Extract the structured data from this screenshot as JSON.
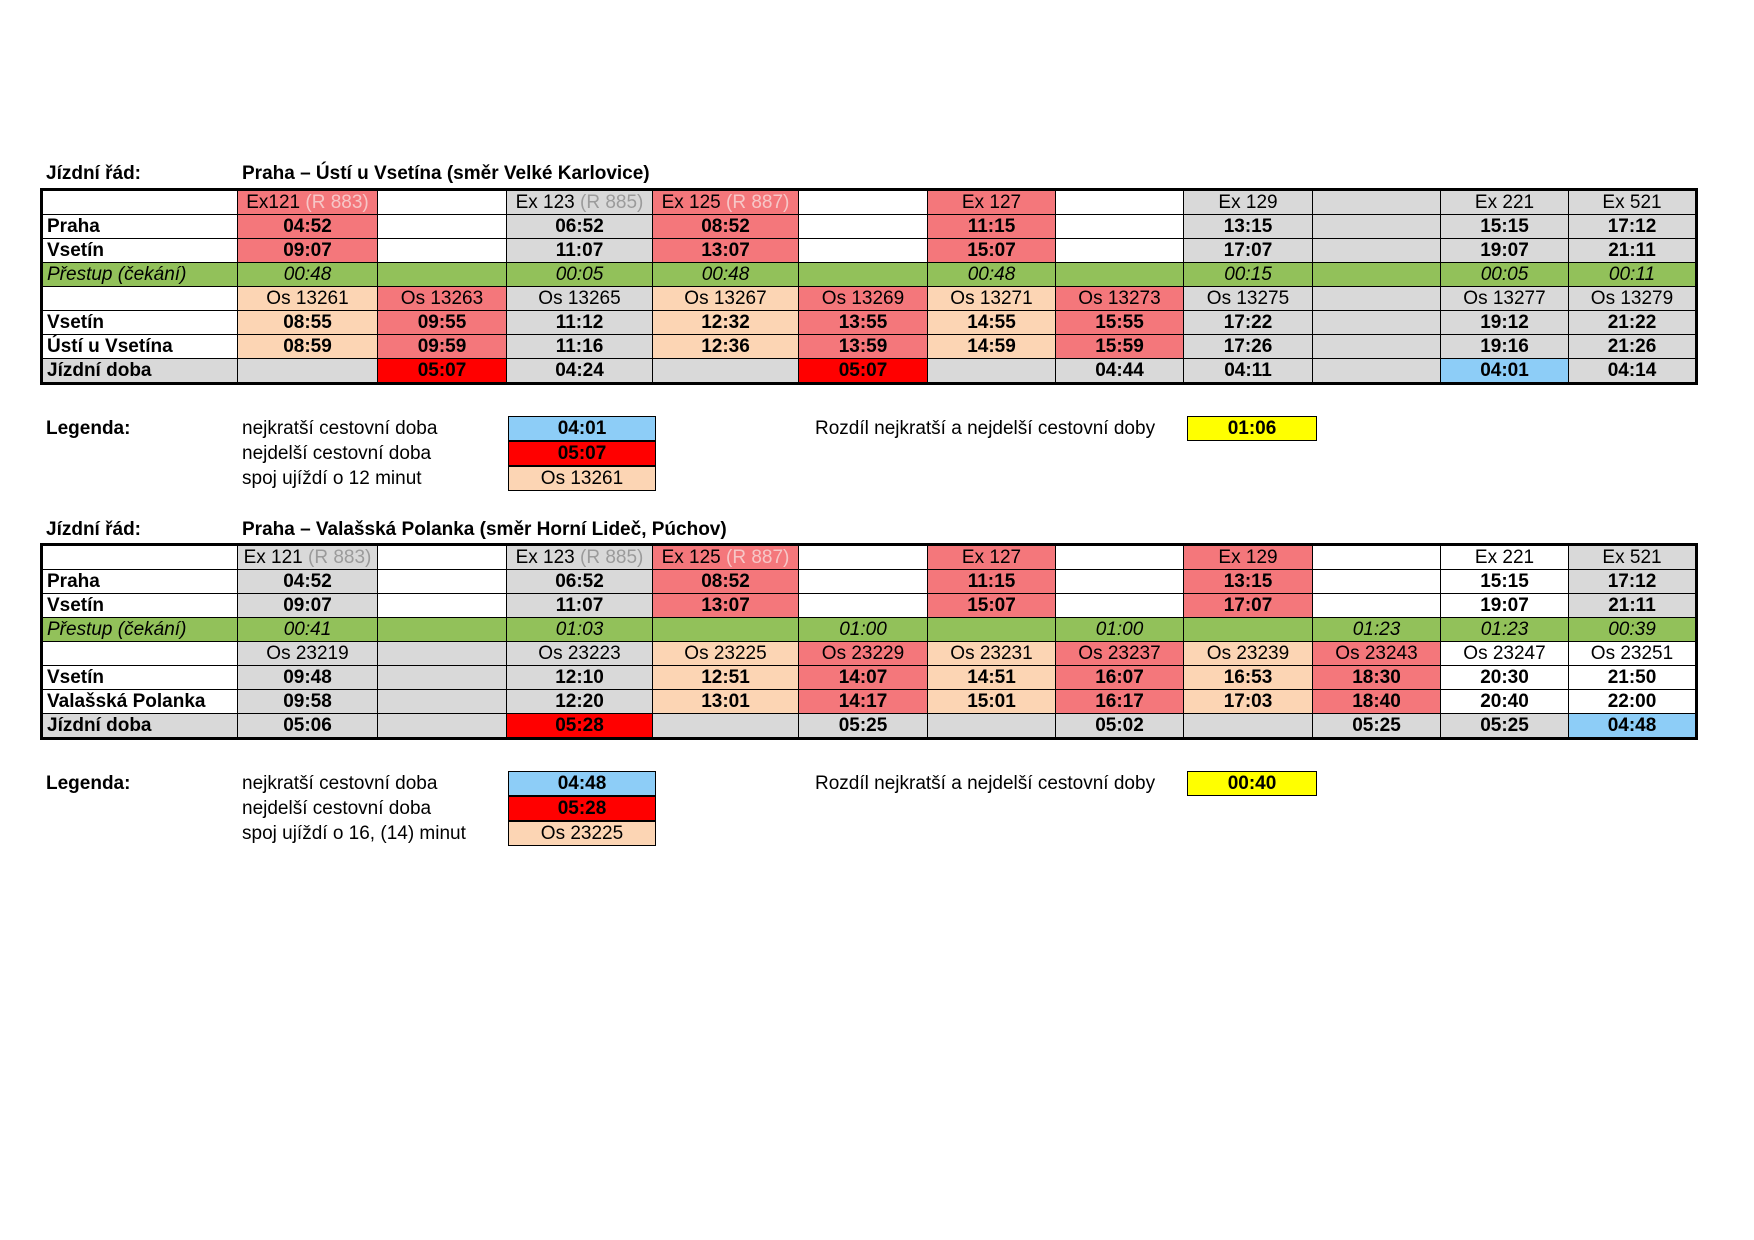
{
  "colors": {
    "gray": "#d9d9d9",
    "orange": "#fcd5b4",
    "pink": "#f4777b",
    "red": "#ff0000",
    "blue": "#8dcdf7",
    "green": "#92c15a",
    "yellow": "#ffff00"
  },
  "t1": {
    "label": "Jízdní řád:",
    "route": "Praha – Ústí u Vsetína (směr Velké Karlovice)",
    "trains": [
      {
        "name": "Ex121",
        "sub": "(R 883)"
      },
      {
        "name": "",
        "sub": ""
      },
      {
        "name": "Ex 123",
        "sub": "(R 885)"
      },
      {
        "name": "Ex 125",
        "sub": "(R 887)"
      },
      {
        "name": "",
        "sub": ""
      },
      {
        "name": "Ex 127",
        "sub": ""
      },
      {
        "name": "",
        "sub": ""
      },
      {
        "name": "Ex 129",
        "sub": ""
      },
      {
        "name": "",
        "sub": ""
      },
      {
        "name": "Ex 221",
        "sub": ""
      },
      {
        "name": "Ex 521",
        "sub": ""
      }
    ],
    "rows": [
      {
        "label": "Praha",
        "cells": [
          "04:52",
          "",
          "06:52",
          "08:52",
          "",
          "11:15",
          "",
          "13:15",
          "",
          "15:15",
          "17:12"
        ]
      },
      {
        "label": "Vsetín",
        "cells": [
          "09:07",
          "",
          "11:07",
          "13:07",
          "",
          "15:07",
          "",
          "17:07",
          "",
          "19:07",
          "21:11"
        ]
      },
      {
        "label": "Přestup (čekání)",
        "cells": [
          "00:48",
          "",
          "00:05",
          "00:48",
          "",
          "00:48",
          "",
          "00:15",
          "",
          "00:05",
          "00:11"
        ]
      },
      {
        "label": "",
        "cells": [
          "Os 13261",
          "Os 13263",
          "Os 13265",
          "Os 13267",
          "Os 13269",
          "Os 13271",
          "Os 13273",
          "Os 13275",
          "",
          "Os 13277",
          "Os 13279"
        ]
      },
      {
        "label": "Vsetín",
        "cells": [
          "08:55",
          "09:55",
          "11:12",
          "12:32",
          "13:55",
          "14:55",
          "15:55",
          "17:22",
          "",
          "19:12",
          "21:22"
        ]
      },
      {
        "label": "Ústí u Vsetína",
        "cells": [
          "08:59",
          "09:59",
          "11:16",
          "12:36",
          "13:59",
          "14:59",
          "15:59",
          "17:26",
          "",
          "19:16",
          "21:26"
        ]
      },
      {
        "label": "Jízdní doba",
        "cells": [
          "",
          "05:07",
          "04:24",
          "",
          "05:07",
          "",
          "04:44",
          "04:11",
          "",
          "04:01",
          "04:14"
        ]
      }
    ],
    "legend": {
      "title": "Legenda:",
      "shortest": "nejkratší cestovní doba",
      "shortest_val": "04:01",
      "longest": "nejdelší cestovní doba",
      "longest_val": "05:07",
      "late": "spoj ujíždí o 12 minut",
      "late_val": "Os 13261",
      "diff_label": "Rozdíl nejkratší a nejdelší cestovní doby",
      "diff_val": "01:06"
    }
  },
  "t2": {
    "label": "Jízdní řád:",
    "route": "Praha – Valašská Polanka (směr Horní Lideč, Púchov)",
    "trains": [
      {
        "name": "Ex 121",
        "sub": "(R 883)"
      },
      {
        "name": "",
        "sub": ""
      },
      {
        "name": "Ex 123",
        "sub": "(R 885)"
      },
      {
        "name": "Ex 125",
        "sub": "(R 887)"
      },
      {
        "name": "",
        "sub": ""
      },
      {
        "name": "Ex 127",
        "sub": ""
      },
      {
        "name": "",
        "sub": ""
      },
      {
        "name": "Ex 129",
        "sub": ""
      },
      {
        "name": "",
        "sub": ""
      },
      {
        "name": "Ex 221",
        "sub": ""
      },
      {
        "name": "Ex 521",
        "sub": ""
      }
    ],
    "rows": [
      {
        "label": "Praha",
        "cells": [
          "04:52",
          "",
          "06:52",
          "08:52",
          "",
          "11:15",
          "",
          "13:15",
          "",
          "15:15",
          "17:12"
        ]
      },
      {
        "label": "Vsetín",
        "cells": [
          "09:07",
          "",
          "11:07",
          "13:07",
          "",
          "15:07",
          "",
          "17:07",
          "",
          "19:07",
          "21:11"
        ]
      },
      {
        "label": "Přestup (čekání)",
        "cells": [
          "00:41",
          "",
          "01:03",
          "",
          "01:00",
          "",
          "01:00",
          "",
          "01:23",
          "01:23",
          "00:39"
        ]
      },
      {
        "label": "",
        "cells": [
          "Os 23219",
          "",
          "Os 23223",
          "Os 23225",
          "Os 23229",
          "Os 23231",
          "Os 23237",
          "Os 23239",
          "Os 23243",
          "Os 23247",
          "Os 23251"
        ]
      },
      {
        "label": "Vsetín",
        "cells": [
          "09:48",
          "",
          "12:10",
          "12:51",
          "14:07",
          "14:51",
          "16:07",
          "16:53",
          "18:30",
          "20:30",
          "21:50"
        ]
      },
      {
        "label": "Valašská Polanka",
        "cells": [
          "09:58",
          "",
          "12:20",
          "13:01",
          "14:17",
          "15:01",
          "16:17",
          "17:03",
          "18:40",
          "20:40",
          "22:00"
        ]
      },
      {
        "label": "Jízdní doba",
        "cells": [
          "05:06",
          "",
          "05:28",
          "",
          "05:25",
          "",
          "05:02",
          "",
          "05:25",
          "05:25",
          "04:48"
        ]
      }
    ],
    "legend": {
      "title": "Legenda:",
      "shortest": "nejkratší cestovní doba",
      "shortest_val": "04:48",
      "longest": "nejdelší cestovní doba",
      "longest_val": "05:28",
      "late": "spoj ujíždí o 16, (14) minut",
      "late_val": "Os 23225",
      "diff_label": "Rozdíl nejkratší a nejdelší cestovní doby",
      "diff_val": "00:40"
    }
  }
}
